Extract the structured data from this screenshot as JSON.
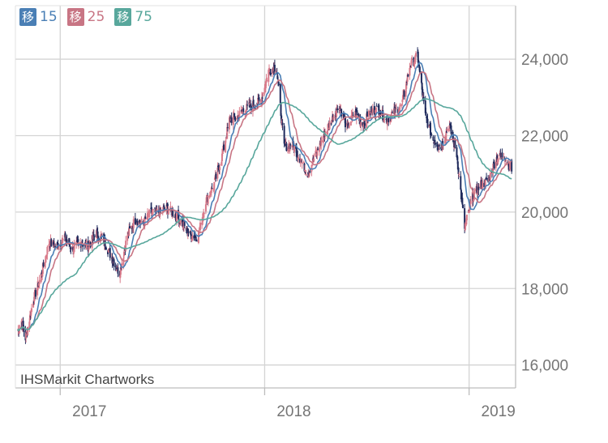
{
  "chart_data": {
    "type": "line",
    "subtype": "candlestick-with-moving-averages",
    "title": "",
    "xlabel": "",
    "ylabel": "",
    "x_ticks": [
      "2017",
      "2018",
      "2019"
    ],
    "y_ticks": [
      "16,000",
      "18,000",
      "20,000",
      "22,000",
      "24,000"
    ],
    "ylim": [
      15400,
      25400
    ],
    "grid": true,
    "legend_position": "top-left",
    "legend": [
      {
        "badge": "移",
        "label": "15",
        "color": "#4a7fb5"
      },
      {
        "badge": "移",
        "label": "25",
        "color": "#c87584"
      },
      {
        "badge": "移",
        "label": "75",
        "color": "#58a79c"
      }
    ],
    "credit": "IHSMarkit Chartworks",
    "candle_colors": {
      "up": "#d97a8a",
      "down": "#1f2a5c"
    },
    "price_path": [
      [
        "2016-10-17",
        16900
      ],
      [
        "2016-10-24",
        17150
      ],
      [
        "2016-10-31",
        16700
      ],
      [
        "2016-11-14",
        17700
      ],
      [
        "2016-11-28",
        18350
      ],
      [
        "2016-12-12",
        19200
      ],
      [
        "2016-12-26",
        19100
      ],
      [
        "2017-01-09",
        19300
      ],
      [
        "2017-01-23",
        19050
      ],
      [
        "2017-02-06",
        19200
      ],
      [
        "2017-02-20",
        19100
      ],
      [
        "2017-03-06",
        19450
      ],
      [
        "2017-03-20",
        19250
      ],
      [
        "2017-04-03",
        18800
      ],
      [
        "2017-04-17",
        18400
      ],
      [
        "2017-05-01",
        19400
      ],
      [
        "2017-05-15",
        19800
      ],
      [
        "2017-05-29",
        19700
      ],
      [
        "2017-06-12",
        20000
      ],
      [
        "2017-06-26",
        20000
      ],
      [
        "2017-07-10",
        20100
      ],
      [
        "2017-07-24",
        19950
      ],
      [
        "2017-08-07",
        19700
      ],
      [
        "2017-08-21",
        19400
      ],
      [
        "2017-09-04",
        19350
      ],
      [
        "2017-09-18",
        20300
      ],
      [
        "2017-10-02",
        20700
      ],
      [
        "2017-10-16",
        21400
      ],
      [
        "2017-10-30",
        22400
      ],
      [
        "2017-11-13",
        22500
      ],
      [
        "2017-11-27",
        22700
      ],
      [
        "2017-12-11",
        22800
      ],
      [
        "2017-12-25",
        22900
      ],
      [
        "2018-01-08",
        23700
      ],
      [
        "2018-01-22",
        23800
      ],
      [
        "2018-02-05",
        21700
      ],
      [
        "2018-02-19",
        21800
      ],
      [
        "2018-03-05",
        21400
      ],
      [
        "2018-03-19",
        21000
      ],
      [
        "2018-04-02",
        21500
      ],
      [
        "2018-04-16",
        22000
      ],
      [
        "2018-04-30",
        22400
      ],
      [
        "2018-05-14",
        22800
      ],
      [
        "2018-05-28",
        22200
      ],
      [
        "2018-06-11",
        22600
      ],
      [
        "2018-06-25",
        22300
      ],
      [
        "2018-07-09",
        22600
      ],
      [
        "2018-07-23",
        22700
      ],
      [
        "2018-08-06",
        22400
      ],
      [
        "2018-08-20",
        22600
      ],
      [
        "2018-09-03",
        22800
      ],
      [
        "2018-09-17",
        23800
      ],
      [
        "2018-10-01",
        24100
      ],
      [
        "2018-10-15",
        22500
      ],
      [
        "2018-10-29",
        21900
      ],
      [
        "2018-11-12",
        21700
      ],
      [
        "2018-11-26",
        22300
      ],
      [
        "2018-12-10",
        21500
      ],
      [
        "2018-12-24",
        19600
      ],
      [
        "2019-01-07",
        20400
      ],
      [
        "2019-01-21",
        20700
      ],
      [
        "2019-02-04",
        20800
      ],
      [
        "2019-02-18",
        21400
      ],
      [
        "2019-03-04",
        21500
      ],
      [
        "2019-03-18",
        21100
      ]
    ],
    "series": [
      {
        "name": "15",
        "type": "moving-average",
        "window": 15,
        "color": "#4a7fb5"
      },
      {
        "name": "25",
        "type": "moving-average",
        "window": 25,
        "color": "#c87584"
      },
      {
        "name": "75",
        "type": "moving-average",
        "window": 75,
        "color": "#58a79c"
      }
    ]
  }
}
